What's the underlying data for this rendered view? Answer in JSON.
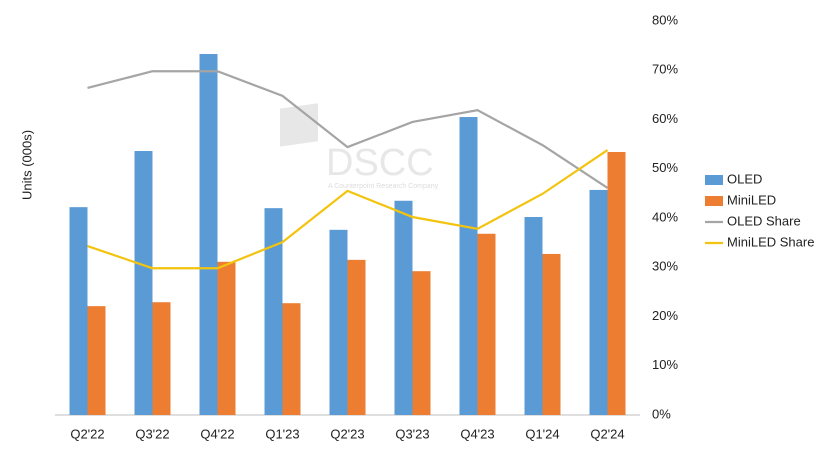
{
  "chart_data": {
    "type": "bar-line",
    "y_axis_label": "Units (000s)",
    "watermark": "DSCC",
    "watermark_subtitle": "A Counterpoint Research Company",
    "categories": [
      "Q2'22",
      "Q3'22",
      "Q4'22",
      "Q1'23",
      "Q2'23",
      "Q3'23",
      "Q4'23",
      "Q1'24",
      "Q2'24"
    ],
    "ylim": [
      0,
      80
    ],
    "y2lim": [
      0,
      80
    ],
    "y2ticks": [
      {
        "value": 0,
        "label": "0%"
      },
      {
        "value": 10,
        "label": "10%"
      },
      {
        "value": 20,
        "label": "20%"
      },
      {
        "value": 30,
        "label": "30%"
      },
      {
        "value": 40,
        "label": "40%"
      },
      {
        "value": 50,
        "label": "50%"
      },
      {
        "value": 60,
        "label": "60%"
      },
      {
        "value": 70,
        "label": "70%"
      },
      {
        "value": 80,
        "label": "80%"
      }
    ],
    "series": [
      {
        "name": "OLED",
        "kind": "bar",
        "color": "#5b9bd5",
        "values": [
          42.2,
          53.6,
          73.3,
          42.0,
          37.6,
          43.5,
          60.5,
          40.2,
          45.7
        ]
      },
      {
        "name": "MiniLED",
        "kind": "bar",
        "color": "#ed7d31",
        "values": [
          22.1,
          22.9,
          31.1,
          22.7,
          31.5,
          29.2,
          36.8,
          32.7,
          53.4
        ]
      },
      {
        "name": "OLED Share",
        "kind": "line",
        "axis": "y2",
        "color": "#a5a5a5",
        "values": [
          66.4,
          69.8,
          69.8,
          64.8,
          54.4,
          59.5,
          61.9,
          54.8,
          46.1
        ]
      },
      {
        "name": "MiniLED Share",
        "kind": "line",
        "axis": "y2",
        "color": "#f2c40f",
        "values": [
          34.3,
          29.8,
          29.8,
          35.1,
          45.5,
          40.2,
          37.8,
          44.9,
          53.8
        ]
      }
    ]
  }
}
